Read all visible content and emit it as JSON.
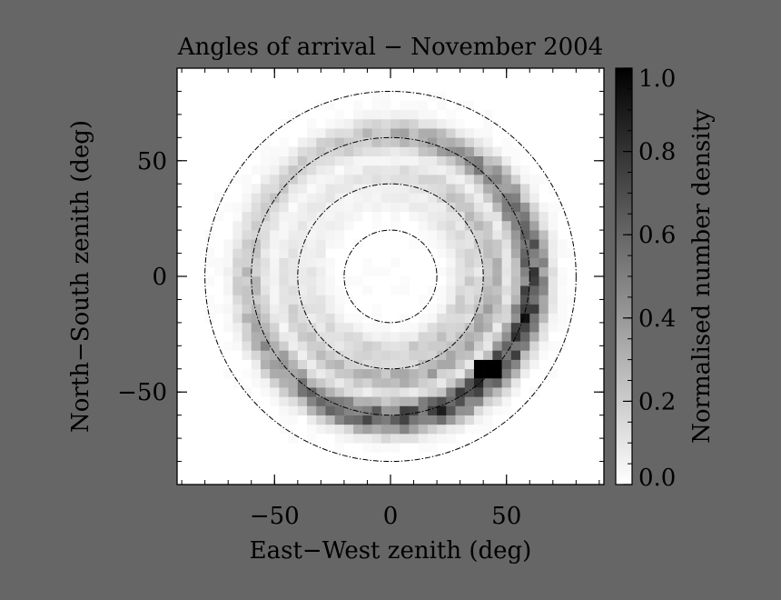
{
  "chart_data": {
    "type": "heatmap",
    "title": "Angles of arrival − November 2004",
    "xlabel": "East−West zenith (deg)",
    "ylabel": "North−South zenith (deg)",
    "colorbar_label": "Normalised number density",
    "xlim": [
      -92,
      92
    ],
    "ylim": [
      -90,
      90
    ],
    "x_ticks": [
      -50,
      0,
      50
    ],
    "y_ticks": [
      -50,
      0,
      50
    ],
    "x_tick_labels": [
      "−50",
      "0",
      "50"
    ],
    "y_tick_labels": [
      "−50",
      "0",
      "50"
    ],
    "colorbar_range": [
      0,
      1
    ],
    "colorbar_ticks": [
      0.0,
      0.2,
      0.4,
      0.6,
      0.8,
      1.0
    ],
    "colorbar_tick_labels": [
      "0.0",
      "0.2",
      "0.4",
      "0.6",
      "0.8",
      "1.0"
    ],
    "colormap": "white-to-black grayscale",
    "bin_size_deg": 4,
    "reference_circles_deg": [
      20,
      40,
      60,
      80
    ],
    "grid": false,
    "density_bands": [
      {
        "center_radius_deg": 61,
        "width_deg": 7,
        "peak_density": 0.75,
        "strongest_toward_azimuth_deg": 132
      },
      {
        "center_radius_deg": 44,
        "width_deg": 6,
        "peak_density": 0.35,
        "strongest_toward_azimuth_deg": 135
      },
      {
        "center_radius_deg": 34,
        "width_deg": 7,
        "peak_density": 0.2,
        "strongest_toward_azimuth_deg": 150
      }
    ],
    "max_density_location_deg": {
      "x": 42,
      "y": -40,
      "value": 1.0
    },
    "background_color": "#666666",
    "plot_background_color": "#ffffff"
  }
}
